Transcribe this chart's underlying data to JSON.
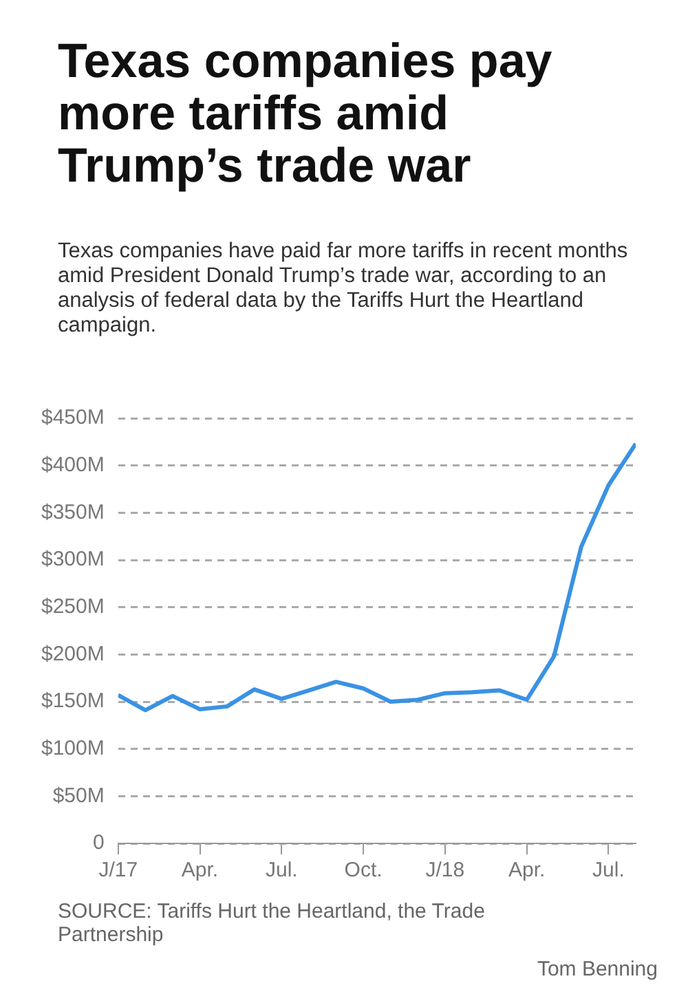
{
  "chart_data": {
    "type": "line",
    "title": "Texas companies pay more tariffs amid Trump’s trade war",
    "subtitle": "Texas companies have paid far more tariffs in recent months amid President Donald Trump’s trade war, according to an analysis of federal data by the Tariffs Hurt the Heartland campaign.",
    "x": [
      "2017-01",
      "2017-02",
      "2017-03",
      "2017-04",
      "2017-05",
      "2017-06",
      "2017-07",
      "2017-08",
      "2017-09",
      "2017-10",
      "2017-11",
      "2017-12",
      "2018-01",
      "2018-02",
      "2018-03",
      "2018-04",
      "2018-05",
      "2018-06",
      "2018-07",
      "2018-08"
    ],
    "series": [
      {
        "color": "#3a92e4",
        "values": [
          157,
          141,
          156,
          142,
          145,
          163,
          153,
          162,
          171,
          164,
          150,
          152,
          159,
          160,
          162,
          152,
          198,
          314,
          379,
          423
        ]
      }
    ],
    "xlim": [
      "2017-01",
      "2018-08"
    ],
    "xticks": [
      {
        "value": "2017-01",
        "label": "J/17"
      },
      {
        "value": "2017-04",
        "label": "Apr."
      },
      {
        "value": "2017-07",
        "label": "Jul."
      },
      {
        "value": "2017-10",
        "label": "Oct."
      },
      {
        "value": "2018-01",
        "label": "J/18"
      },
      {
        "value": "2018-04",
        "label": "Apr."
      },
      {
        "value": "2018-07",
        "label": "Jul."
      }
    ],
    "ylim": [
      0,
      450
    ],
    "yticks": [
      {
        "value": 0,
        "label": "0"
      },
      {
        "value": 50,
        "label": "$50M"
      },
      {
        "value": 100,
        "label": "$100M"
      },
      {
        "value": 150,
        "label": "$150M"
      },
      {
        "value": 200,
        "label": "$200M"
      },
      {
        "value": 250,
        "label": "$250M"
      },
      {
        "value": 300,
        "label": "$300M"
      },
      {
        "value": 350,
        "label": "$350M"
      },
      {
        "value": 400,
        "label": "$400M"
      },
      {
        "value": 450,
        "label": "$450M"
      }
    ],
    "grid": "y",
    "legend": false,
    "marker": "none",
    "line_style": "solid",
    "annotations": [
      "SOURCE: Tariffs Hurt the Heartland, the Trade Partnership",
      "Tom Benning"
    ]
  }
}
